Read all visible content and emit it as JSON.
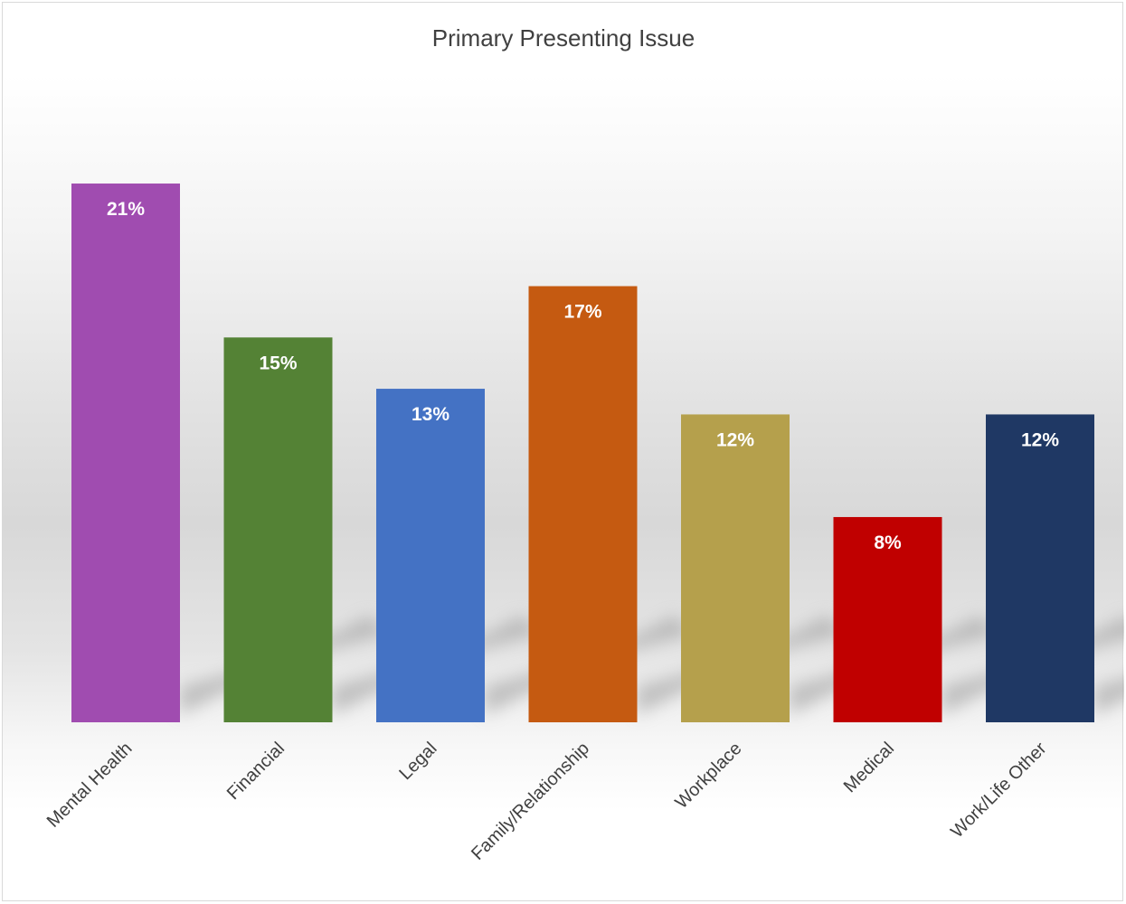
{
  "chart_data": {
    "type": "bar",
    "title": "Primary Presenting Issue",
    "xlabel": "",
    "ylabel": "",
    "ylim": [
      0,
      0.27
    ],
    "grid": false,
    "legend": "none",
    "categories": [
      "Mental Health",
      "Financial",
      "Legal",
      "Family/Relationship",
      "Workplace",
      "Medical",
      "Work/Life Other"
    ],
    "values": [
      0.21,
      0.15,
      0.13,
      0.17,
      0.12,
      0.08,
      0.12
    ],
    "value_labels": [
      "21%",
      "15%",
      "13%",
      "17%",
      "12%",
      "8%",
      "12%"
    ],
    "colors": [
      "#a04cb0",
      "#548235",
      "#4472c4",
      "#c55a11",
      "#b5a04c",
      "#c00000",
      "#1f3864"
    ]
  }
}
